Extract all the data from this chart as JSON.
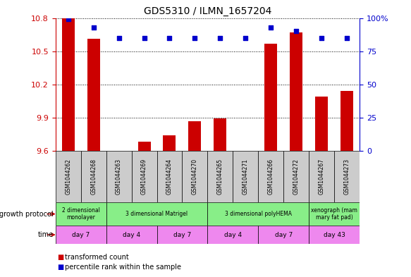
{
  "title": "GDS5310 / ILMN_1657204",
  "samples": [
    "GSM1044262",
    "GSM1044268",
    "GSM1044263",
    "GSM1044269",
    "GSM1044264",
    "GSM1044270",
    "GSM1044265",
    "GSM1044271",
    "GSM1044266",
    "GSM1044272",
    "GSM1044267",
    "GSM1044273"
  ],
  "bar_values": [
    10.795,
    10.61,
    9.602,
    9.685,
    9.74,
    9.87,
    9.895,
    9.6,
    10.57,
    10.67,
    10.09,
    10.14
  ],
  "dot_values_pct": [
    99,
    93,
    85,
    85,
    85,
    85,
    85,
    85,
    93,
    90,
    85,
    85
  ],
  "ylim_left": [
    9.6,
    10.8
  ],
  "ylim_right": [
    0,
    100
  ],
  "yticks_left": [
    9.6,
    9.9,
    10.2,
    10.5,
    10.8
  ],
  "yticks_right": [
    0,
    25,
    50,
    75,
    100
  ],
  "bar_color": "#cc0000",
  "dot_color": "#0000cc",
  "bar_baseline": 9.6,
  "growth_protocol_groups": [
    {
      "label": "2 dimensional\nmonolayer",
      "start": 0,
      "end": 2,
      "color": "#88ee88"
    },
    {
      "label": "3 dimensional Matrigel",
      "start": 2,
      "end": 6,
      "color": "#88ee88"
    },
    {
      "label": "3 dimensional polyHEMA",
      "start": 6,
      "end": 10,
      "color": "#88ee88"
    },
    {
      "label": "xenograph (mam\nmary fat pad)",
      "start": 10,
      "end": 12,
      "color": "#88ee88"
    }
  ],
  "time_groups": [
    {
      "label": "day 7",
      "start": 0,
      "end": 2,
      "color": "#ee88ee"
    },
    {
      "label": "day 4",
      "start": 2,
      "end": 4,
      "color": "#ee88ee"
    },
    {
      "label": "day 7",
      "start": 4,
      "end": 6,
      "color": "#ee88ee"
    },
    {
      "label": "day 4",
      "start": 6,
      "end": 8,
      "color": "#ee88ee"
    },
    {
      "label": "day 7",
      "start": 8,
      "end": 10,
      "color": "#ee88ee"
    },
    {
      "label": "day 43",
      "start": 10,
      "end": 12,
      "color": "#ee88ee"
    }
  ],
  "growth_protocol_label": "growth protocol",
  "time_label": "time",
  "legend_bar_label": "transformed count",
  "legend_dot_label": "percentile rank within the sample",
  "sample_box_color": "#cccccc",
  "right_axis_color": "#0000cc",
  "left_axis_color": "#cc0000",
  "bar_width": 0.5
}
